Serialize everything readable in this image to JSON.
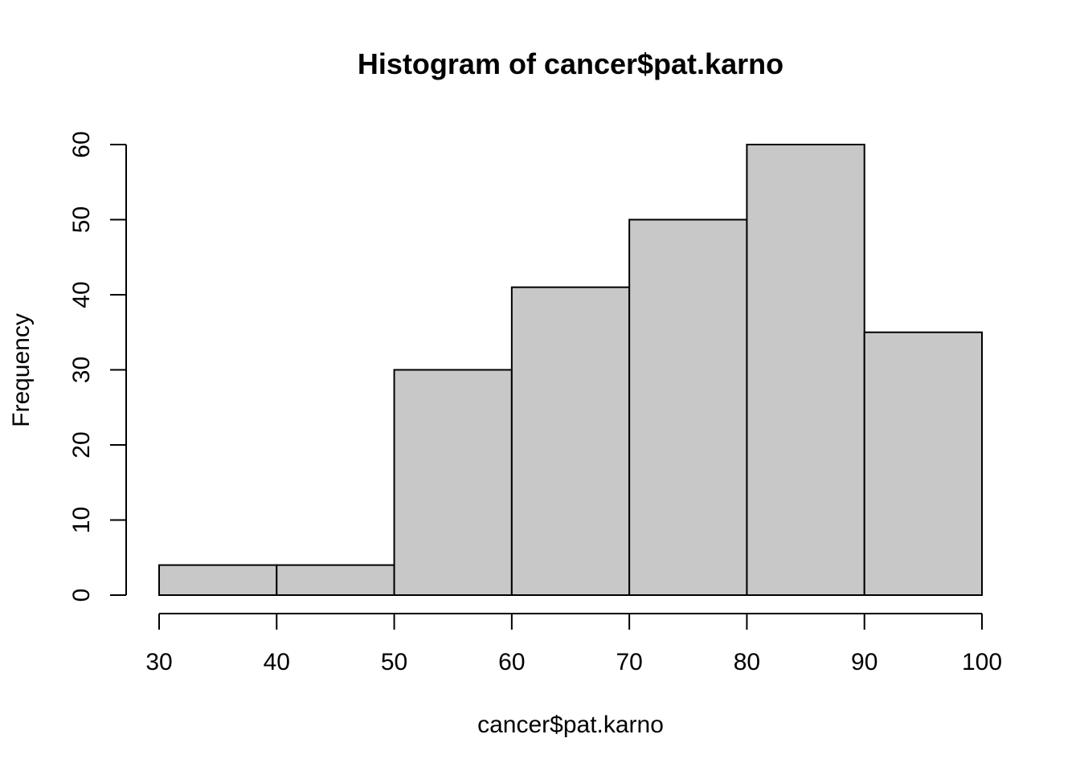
{
  "chart_data": {
    "type": "bar",
    "title": "Histogram of cancer$pat.karno",
    "xlabel": "cancer$pat.karno",
    "ylabel": "Frequency",
    "bins": [
      {
        "from": 30,
        "to": 40,
        "count": 4
      },
      {
        "from": 40,
        "to": 50,
        "count": 4
      },
      {
        "from": 50,
        "to": 60,
        "count": 30
      },
      {
        "from": 60,
        "to": 70,
        "count": 41
      },
      {
        "from": 70,
        "to": 80,
        "count": 50
      },
      {
        "from": 80,
        "to": 90,
        "count": 60
      },
      {
        "from": 90,
        "to": 100,
        "count": 35
      }
    ],
    "x_ticks": [
      30,
      40,
      50,
      60,
      70,
      80,
      90,
      100
    ],
    "y_ticks": [
      0,
      10,
      20,
      30,
      40,
      50,
      60
    ],
    "xlim": [
      30,
      100
    ],
    "ylim": [
      0,
      60
    ],
    "grid": false,
    "bar_color": "#c8c8c8",
    "border_color": "#000000"
  }
}
